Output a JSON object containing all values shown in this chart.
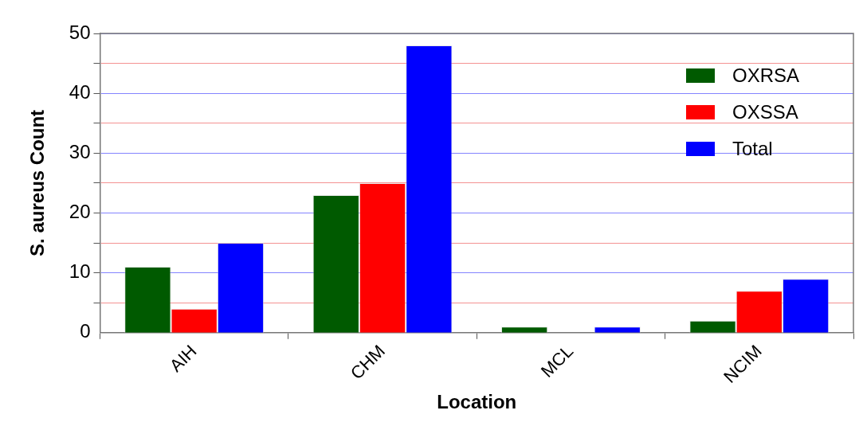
{
  "chart_data": {
    "type": "bar",
    "xlabel": "Location",
    "ylabel": "S. aureus Count",
    "categories": [
      "AIH",
      "CHM",
      "MCL",
      "NCIM"
    ],
    "series": [
      {
        "name": "OXRSA",
        "color": "#005a00",
        "values": [
          11,
          23,
          1,
          2
        ]
      },
      {
        "name": "OXSSA",
        "color": "#ff0000",
        "values": [
          4,
          25,
          0,
          7
        ]
      },
      {
        "name": "Total",
        "color": "#0000ff",
        "values": [
          15,
          48,
          1,
          9
        ]
      }
    ],
    "ylim": [
      0,
      50
    ],
    "yticks": [
      0,
      {
        "value": 5,
        "label": null
      },
      10,
      {
        "value": 15,
        "label": null
      },
      20,
      {
        "value": 25,
        "label": null
      },
      30,
      {
        "value": 35,
        "label": null
      },
      40,
      {
        "value": 45,
        "label": null
      },
      50
    ],
    "grid": "y",
    "legend": "top right"
  }
}
